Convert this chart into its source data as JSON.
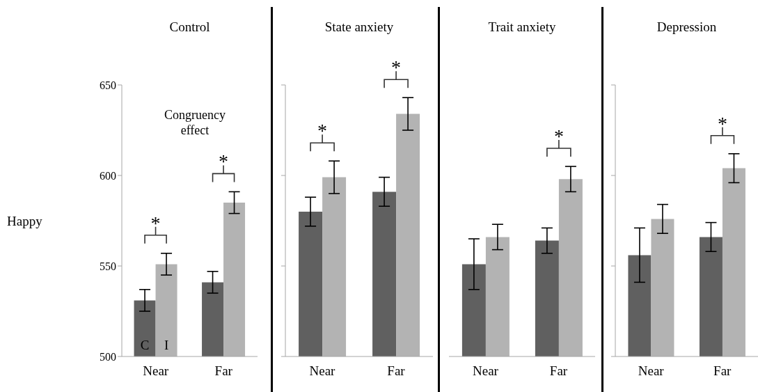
{
  "chart_data": [
    {
      "type": "bar",
      "title": "Control",
      "ylabel": "Happy",
      "categories": [
        "Near",
        "Far"
      ],
      "series": [
        {
          "name": "C",
          "color": "#606060",
          "values": [
            531,
            541
          ],
          "errors": [
            6,
            6
          ]
        },
        {
          "name": "I",
          "color": "#b3b3b3",
          "values": [
            551,
            585
          ],
          "errors": [
            6,
            6
          ]
        }
      ],
      "ylim": [
        500,
        650
      ],
      "yticks": [
        500,
        550,
        600,
        650
      ],
      "grid": false,
      "legend": false,
      "annotations": [
        "Congruency effect",
        "*",
        "*"
      ]
    },
    {
      "type": "bar",
      "title": "State anxiety",
      "categories": [
        "Near",
        "Far"
      ],
      "series": [
        {
          "color": "#606060",
          "values": [
            580,
            591
          ],
          "errors": [
            8,
            8
          ]
        },
        {
          "color": "#b3b3b3",
          "values": [
            599,
            634
          ],
          "errors": [
            9,
            9
          ]
        }
      ],
      "ylim": [
        500,
        650
      ],
      "yticks": [
        {
          "value": 500,
          "label": null
        },
        {
          "value": 550,
          "label": null
        },
        {
          "value": 600,
          "label": null
        },
        {
          "value": 650,
          "label": null
        }
      ],
      "tick_labels": "x",
      "grid": false,
      "legend": false,
      "annotations": [
        "*",
        "*"
      ]
    },
    {
      "type": "bar",
      "title": "Trait anxiety",
      "categories": [
        "Near",
        "Far"
      ],
      "series": [
        {
          "color": "#606060",
          "values": [
            551,
            564
          ],
          "errors": [
            14,
            7
          ]
        },
        {
          "color": "#b3b3b3",
          "values": [
            566,
            598
          ],
          "errors": [
            7,
            7
          ]
        }
      ],
      "ylim": [
        500,
        650
      ],
      "tick_labels": "x",
      "grid": false,
      "legend": false,
      "annotations": [
        "*"
      ]
    },
    {
      "type": "bar",
      "title": "Depression",
      "categories": [
        "Near",
        "Far"
      ],
      "series": [
        {
          "color": "#606060",
          "values": [
            556,
            566
          ],
          "errors": [
            15,
            8
          ]
        },
        {
          "color": "#b3b3b3",
          "values": [
            576,
            604
          ],
          "errors": [
            8,
            8
          ]
        }
      ],
      "ylim": [
        500,
        650
      ],
      "yticks": [
        {
          "value": 500,
          "label": null
        },
        {
          "value": 550,
          "label": null
        },
        {
          "value": 600,
          "label": null
        },
        {
          "value": 650,
          "label": null
        }
      ],
      "tick_labels": "x",
      "grid": false,
      "legend": false,
      "annotations": [
        "*"
      ]
    }
  ]
}
